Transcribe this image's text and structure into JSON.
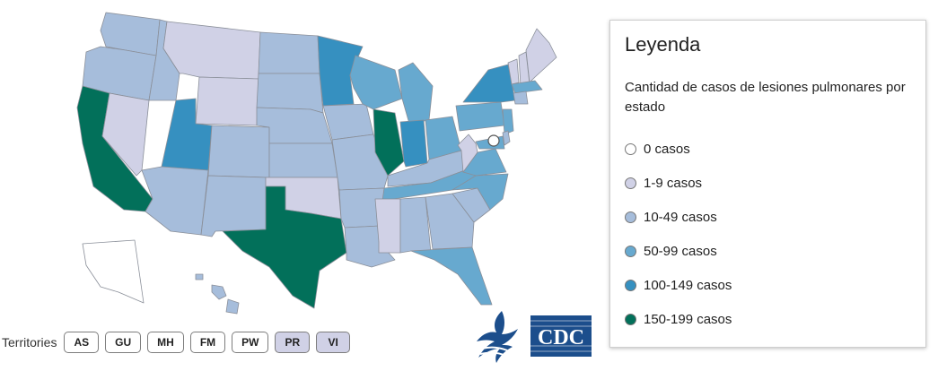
{
  "legend": {
    "title": "Leyenda",
    "subtitle": "Cantidad de casos de lesiones pulmonares por estado",
    "items": [
      {
        "label": "0 casos",
        "color": "#ffffff"
      },
      {
        "label": "1-9 casos",
        "color": "#d0d1e6"
      },
      {
        "label": "10-49 casos",
        "color": "#a6bddb"
      },
      {
        "label": "50-99 casos",
        "color": "#67a9cf"
      },
      {
        "label": "100-149 casos",
        "color": "#3690c0"
      },
      {
        "label": "150-199 casos",
        "color": "#02705a"
      }
    ]
  },
  "territories": {
    "label": "Territories",
    "buttons": [
      {
        "code": "AS",
        "color": "#ffffff"
      },
      {
        "code": "GU",
        "color": "#ffffff"
      },
      {
        "code": "MH",
        "color": "#ffffff"
      },
      {
        "code": "FM",
        "color": "#ffffff"
      },
      {
        "code": "PW",
        "color": "#ffffff"
      },
      {
        "code": "PR",
        "color": "#d0d1e6"
      },
      {
        "code": "VI",
        "color": "#d0d1e6"
      }
    ]
  },
  "logos": {
    "cdc_text": "CDC"
  },
  "map_data": {
    "type": "choropleth",
    "region": "United States",
    "category_by_state": {
      "WA": "10-49 casos",
      "OR": "10-49 casos",
      "CA": "150-199 casos",
      "NV": "1-9 casos",
      "ID": "10-49 casos",
      "MT": "1-9 casos",
      "WY": "1-9 casos",
      "UT": "100-149 casos",
      "AZ": "10-49 casos",
      "CO": "10-49 casos",
      "NM": "10-49 casos",
      "ND": "10-49 casos",
      "SD": "10-49 casos",
      "NE": "10-49 casos",
      "KS": "10-49 casos",
      "OK": "1-9 casos",
      "TX": "150-199 casos",
      "MN": "100-149 casos",
      "IA": "10-49 casos",
      "MO": "10-49 casos",
      "AR": "10-49 casos",
      "LA": "10-49 casos",
      "WI": "50-99 casos",
      "IL": "150-199 casos",
      "MI": "50-99 casos",
      "IN": "100-149 casos",
      "OH": "50-99 casos",
      "KY": "10-49 casos",
      "TN": "50-99 casos",
      "MS": "1-9 casos",
      "AL": "10-49 casos",
      "GA": "10-49 casos",
      "FL": "50-99 casos",
      "SC": "10-49 casos",
      "NC": "50-99 casos",
      "VA": "50-99 casos",
      "WV": "1-9 casos",
      "PA": "50-99 casos",
      "NY": "100-149 casos",
      "VT": "1-9 casos",
      "NH": "1-9 casos",
      "ME": "1-9 casos",
      "MA": "50-99 casos",
      "CT": "10-49 casos",
      "NJ": "50-99 casos",
      "DE": "10-49 casos",
      "MD": "50-99 casos",
      "DC": "0 casos",
      "AK": "0 casos",
      "HI": "10-49 casos"
    }
  }
}
